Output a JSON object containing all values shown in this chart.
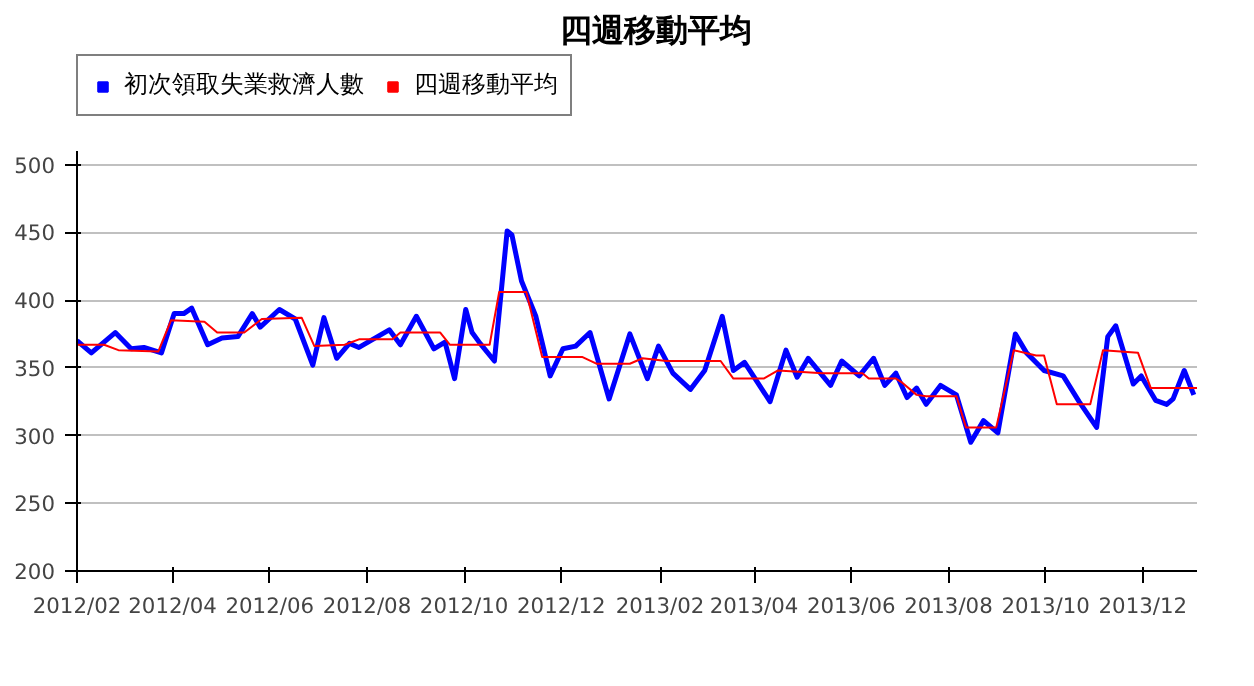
{
  "chart_data": {
    "type": "line",
    "title": "四週移動平均",
    "legend": "top left",
    "grid": "y",
    "marker": "none",
    "line_style": "solid",
    "xlim": [
      "2012-02-01",
      "2014-01-04"
    ],
    "ylim": [
      200,
      510
    ],
    "xticks": [
      {
        "value": "2012-02-01",
        "label": "2012/02"
      },
      {
        "value": "2012-04-01",
        "label": "2012/04"
      },
      {
        "value": "2012-06-01",
        "label": "2012/06"
      },
      {
        "value": "2012-08-01",
        "label": "2012/08"
      },
      {
        "value": "2012-10-01",
        "label": "2012/10"
      },
      {
        "value": "2012-12-01",
        "label": "2012/12"
      },
      {
        "value": "2013-02-01",
        "label": "2013/02"
      },
      {
        "value": "2013-04-01",
        "label": "2013/04"
      },
      {
        "value": "2013-06-01",
        "label": "2013/06"
      },
      {
        "value": "2013-08-01",
        "label": "2013/08"
      },
      {
        "value": "2013-10-01",
        "label": "2013/10"
      },
      {
        "value": "2013-12-01",
        "label": "2013/12"
      }
    ],
    "yticks": [
      200,
      250,
      300,
      350,
      400,
      450,
      500
    ],
    "series": [
      {
        "name": "初次領取失業救濟人數",
        "color": "#0000ff",
        "x": [
          "2012-02-01",
          "2012-02-10",
          "2012-02-25",
          "2012-03-06",
          "2012-03-14",
          "2012-03-25",
          "2012-04-02",
          "2012-04-08",
          "2012-04-13",
          "2012-04-23",
          "2012-05-02",
          "2012-05-12",
          "2012-05-21",
          "2012-05-26",
          "2012-06-07",
          "2012-06-17",
          "2012-06-28",
          "2012-07-05",
          "2012-07-13",
          "2012-07-21",
          "2012-07-27",
          "2012-08-15",
          "2012-08-22",
          "2012-09-01",
          "2012-09-12",
          "2012-09-19",
          "2012-09-25",
          "2012-10-02",
          "2012-10-06",
          "2012-10-11",
          "2012-10-20",
          "2012-10-28",
          "2012-10-31",
          "2012-11-06",
          "2012-11-15",
          "2012-11-24",
          "2012-12-02",
          "2012-12-10",
          "2012-12-19",
          "2012-12-31",
          "2013-01-13",
          "2013-01-24",
          "2013-01-31",
          "2013-02-09",
          "2013-02-20",
          "2013-03-01",
          "2013-03-12",
          "2013-03-19",
          "2013-03-26",
          "2013-04-11",
          "2013-04-21",
          "2013-04-28",
          "2013-05-05",
          "2013-05-19",
          "2013-05-26",
          "2013-06-06",
          "2013-06-15",
          "2013-06-22",
          "2013-06-29",
          "2013-07-06",
          "2013-07-12",
          "2013-07-18",
          "2013-07-27",
          "2013-08-06",
          "2013-08-15",
          "2013-08-23",
          "2013-09-01",
          "2013-09-12",
          "2013-09-19",
          "2013-09-30",
          "2013-10-12",
          "2013-10-22",
          "2013-11-02",
          "2013-11-09",
          "2013-11-14",
          "2013-11-25",
          "2013-11-30",
          "2013-12-09",
          "2013-12-16",
          "2013-12-20",
          "2013-12-27",
          "2014-01-02"
        ],
        "values": [
          370,
          361,
          376,
          364,
          365,
          361,
          390,
          390,
          394,
          367,
          372,
          373,
          390,
          380,
          393,
          386,
          352,
          387,
          357,
          368,
          365,
          378,
          367,
          388,
          364,
          369,
          342,
          393,
          376,
          368,
          355,
          451,
          448,
          414,
          388,
          344,
          364,
          366,
          376,
          327,
          375,
          342,
          366,
          346,
          334,
          348,
          388,
          348,
          354,
          325,
          363,
          343,
          357,
          337,
          355,
          344,
          357,
          337,
          346,
          328,
          335,
          323,
          337,
          330,
          295,
          311,
          302,
          375,
          361,
          348,
          344,
          325,
          306,
          373,
          381,
          338,
          344,
          326,
          323,
          327,
          348,
          330
        ]
      },
      {
        "name": "四週移動平均",
        "color": "#ff0000",
        "x": [
          "2012-02-01",
          "2012-02-18",
          "2012-02-27",
          "2012-03-23",
          "2012-03-31",
          "2012-04-21",
          "2012-04-29",
          "2012-05-16",
          "2012-05-27",
          "2012-06-21",
          "2012-06-29",
          "2012-07-18",
          "2012-07-27",
          "2012-08-17",
          "2012-08-22",
          "2012-09-16",
          "2012-09-22",
          "2012-09-28",
          "2012-10-17",
          "2012-10-23",
          "2012-11-09",
          "2012-11-19",
          "2012-12-14",
          "2012-12-23",
          "2013-01-13",
          "2013-01-21",
          "2013-02-05",
          "2013-03-11",
          "2013-03-19",
          "2013-04-07",
          "2013-04-16",
          "2013-05-14",
          "2013-06-08",
          "2013-06-12",
          "2013-06-29",
          "2013-07-03",
          "2013-07-12",
          "2013-07-18",
          "2013-08-06",
          "2013-08-12",
          "2013-08-31",
          "2013-09-11",
          "2013-09-25",
          "2013-09-30",
          "2013-10-08",
          "2013-10-29",
          "2013-11-06",
          "2013-11-28",
          "2013-12-06",
          "2014-01-04"
        ],
        "values": [
          367,
          367,
          363,
          362,
          385,
          384,
          376,
          376,
          386,
          387,
          366,
          367,
          371,
          371,
          376,
          376,
          367,
          367,
          367,
          406,
          406,
          358,
          358,
          353,
          353,
          357,
          355,
          355,
          342,
          342,
          348,
          346,
          346,
          342,
          342,
          339,
          330,
          329,
          329,
          306,
          306,
          363,
          359,
          359,
          323,
          323,
          363,
          361,
          335,
          335
        ]
      }
    ]
  }
}
